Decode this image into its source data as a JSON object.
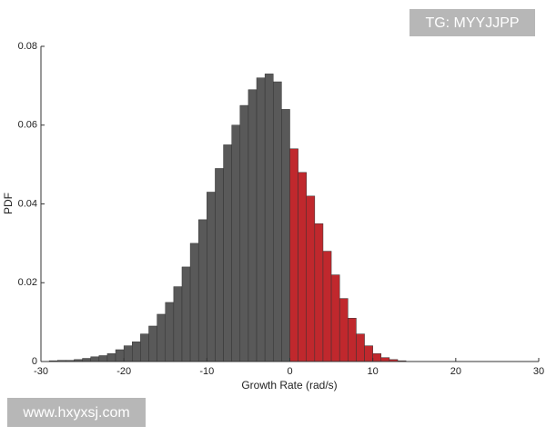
{
  "chart_data": {
    "type": "histogram",
    "xlabel": "Growth Rate (rad/s)",
    "ylabel": "PDF",
    "bins": [
      -30,
      -29,
      -28,
      -27,
      -26,
      -25,
      -24,
      -23,
      -22,
      -21,
      -20,
      -19,
      -18,
      -17,
      -16,
      -15,
      -14,
      -13,
      -12,
      -11,
      -10,
      -9,
      -8,
      -7,
      -6,
      -5,
      -4,
      -3,
      -2,
      -1,
      0,
      1,
      2,
      3,
      4,
      5,
      6,
      7,
      8,
      9,
      10,
      11,
      12,
      13,
      14,
      15
    ],
    "values": [
      0,
      0.0002,
      0.0003,
      0.0003,
      0.0005,
      0.0008,
      0.0012,
      0.0015,
      0.002,
      0.003,
      0.004,
      0.005,
      0.007,
      0.009,
      0.012,
      0.015,
      0.019,
      0.024,
      0.03,
      0.036,
      0.043,
      0.049,
      0.055,
      0.06,
      0.065,
      0.069,
      0.072,
      0.073,
      0.071,
      0.064,
      0.054,
      0.048,
      0.042,
      0.035,
      0.028,
      0.022,
      0.016,
      0.011,
      0.007,
      0.004,
      0.002,
      0.001,
      0.0005,
      0.0002,
      0
    ],
    "colors": [
      "#595959",
      "#595959",
      "#595959",
      "#595959",
      "#595959",
      "#595959",
      "#595959",
      "#595959",
      "#595959",
      "#595959",
      "#595959",
      "#595959",
      "#595959",
      "#595959",
      "#595959",
      "#595959",
      "#595959",
      "#595959",
      "#595959",
      "#595959",
      "#595959",
      "#595959",
      "#595959",
      "#595959",
      "#595959",
      "#595959",
      "#595959",
      "#595959",
      "#595959",
      "#595959",
      "#c0282d",
      "#c0282d",
      "#c0282d",
      "#c0282d",
      "#c0282d",
      "#c0282d",
      "#c0282d",
      "#c0282d",
      "#c0282d",
      "#c0282d",
      "#c0282d",
      "#c0282d",
      "#c0282d",
      "#c0282d",
      "#c0282d"
    ],
    "xlim": [
      -30,
      30
    ],
    "xticks": [
      -30,
      -20,
      -10,
      0,
      10,
      20,
      30
    ],
    "ylim": [
      0,
      0.08
    ],
    "yticks": [
      0,
      0.02,
      0.04,
      0.06,
      0.08
    ]
  },
  "watermarks": [
    "TG: MYYJJPP",
    "www.hxyxsj.com"
  ]
}
